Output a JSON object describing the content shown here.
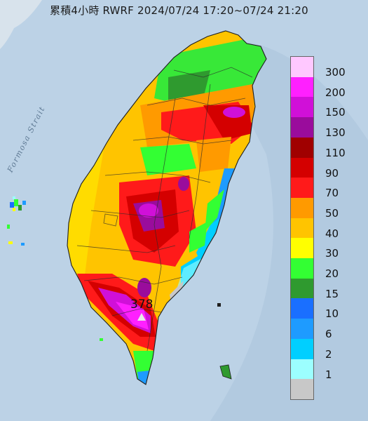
{
  "title": "累積4小時 RWRF 2024/07/24 17:20~07/24 21:20",
  "strait_label": "Formosa Strait",
  "max_value": "378",
  "legend": {
    "items": [
      {
        "label": "300",
        "color": "#ffc8ff"
      },
      {
        "label": "200",
        "color": "#ff20ff"
      },
      {
        "label": "150",
        "color": "#d010d8"
      },
      {
        "label": "130",
        "color": "#9a0c9c"
      },
      {
        "label": "110",
        "color": "#a00000"
      },
      {
        "label": "90",
        "color": "#d40000"
      },
      {
        "label": "70",
        "color": "#ff1a1a"
      },
      {
        "label": "50",
        "color": "#ff9a00"
      },
      {
        "label": "40",
        "color": "#ffc400"
      },
      {
        "label": "30",
        "color": "#ffff00"
      },
      {
        "label": "20",
        "color": "#33ff33"
      },
      {
        "label": "15",
        "color": "#2f9a2f"
      },
      {
        "label": "10",
        "color": "#1a6fff"
      },
      {
        "label": "6",
        "color": "#1e9bff"
      },
      {
        "label": "2",
        "color": "#00cfff"
      },
      {
        "label": "1",
        "color": "#9cffff"
      },
      {
        "label": "",
        "color": "#c8c8c8"
      }
    ]
  }
}
